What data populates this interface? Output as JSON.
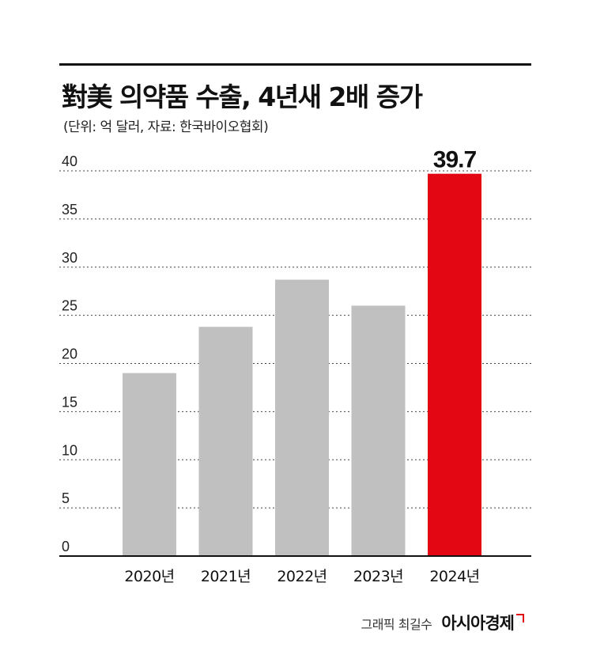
{
  "title": "對美 의약품 수출, 4년새 2배 증가",
  "subtitle": "(단위: 억 달러, 자료: 한국바이오협회)",
  "footer": {
    "credit": "그래픽 최길수",
    "brand": "아시아경제"
  },
  "colors": {
    "bar_default": "#c0c0c0",
    "bar_highlight": "#e30613",
    "grid": "#444444",
    "text": "#111111"
  },
  "chart_data": {
    "type": "bar",
    "title": "對美 의약품 수출, 4년새 2배 증가",
    "subtitle": "(단위: 억 달러, 자료: 한국바이오협회)",
    "categories": [
      "2020년",
      "2021년",
      "2022년",
      "2023년",
      "2024년"
    ],
    "values": [
      19,
      23.8,
      28.7,
      26,
      39.7
    ],
    "highlight_index": 4,
    "data_labels": {
      "4": "39.7"
    },
    "yticks": [
      0,
      5,
      10,
      15,
      20,
      25,
      30,
      35,
      40
    ],
    "ylim": [
      0,
      40
    ],
    "xlabel": "",
    "ylabel": "",
    "grid": true
  }
}
